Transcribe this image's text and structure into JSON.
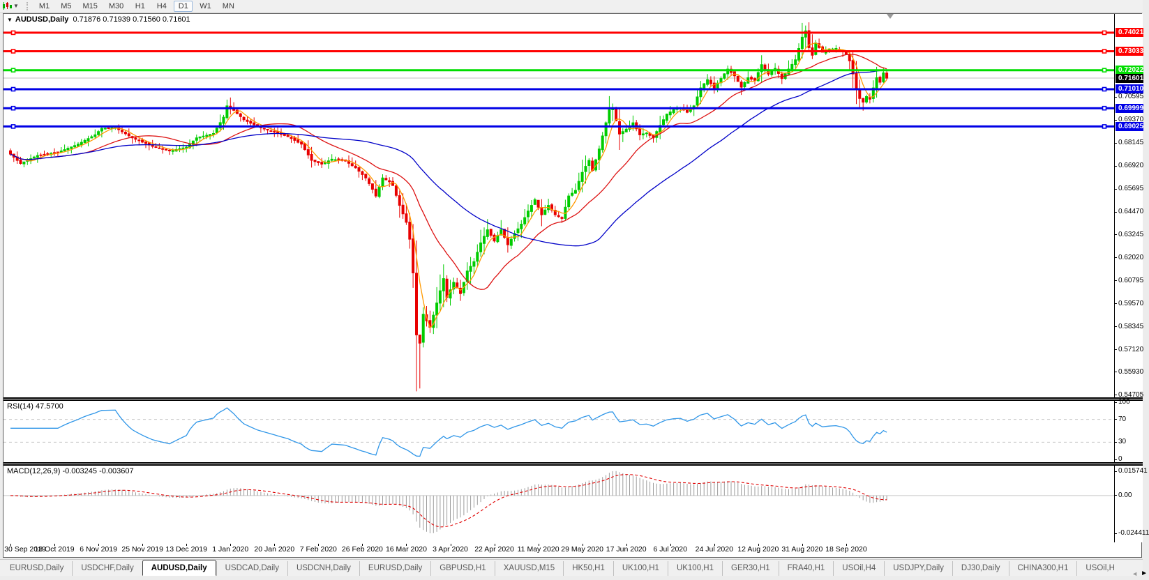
{
  "toolbar": {
    "timeframes": [
      "M1",
      "M5",
      "M15",
      "M30",
      "H1",
      "H4",
      "D1",
      "W1",
      "MN"
    ],
    "active_timeframe": "D1",
    "chart_menu_icon": "charts-toolbar-icon",
    "caret_icon": "chevron-down-icon"
  },
  "title": {
    "expand_icon": "triangle-down-icon",
    "symbol": "AUDUSD,Daily",
    "ohlc": "0.71876 0.71939 0.71560 0.71601"
  },
  "colors": {
    "candle_up": "#00CC00",
    "candle_down": "#E80000",
    "ma_fast": "#FF9900",
    "ma_mid": "#DD1111",
    "ma_slow": "#0000C8",
    "hline_red": "#FF0000",
    "hline_green": "#00DD00",
    "hline_blue": "#0000E6",
    "current_price_line": "#C0C0C0",
    "current_price_badge": "#000000",
    "rsi_line": "#2F96E8",
    "macd_hist": "#9C9C9C",
    "macd_signal": "#E00000"
  },
  "main_axis_ticks": [
    "0.70595",
    "0.69370",
    "0.68145",
    "0.66920",
    "0.65695",
    "0.64470",
    "0.63245",
    "0.62020",
    "0.60795",
    "0.59570",
    "0.58345",
    "0.57120",
    "0.55930",
    "0.54705"
  ],
  "hlines": [
    {
      "label": "0.74021",
      "price": 0.74021,
      "color": "#FF0000"
    },
    {
      "label": "0.73033",
      "price": 0.73033,
      "color": "#FF0000"
    },
    {
      "label": "0.72022",
      "price": 0.72022,
      "color": "#00DD00"
    },
    {
      "label": "0.71010",
      "price": 0.7101,
      "color": "#0000E6"
    },
    {
      "label": "0.69999",
      "price": 0.69999,
      "color": "#0000E6"
    },
    {
      "label": "0.69025",
      "price": 0.69025,
      "color": "#0000E6"
    }
  ],
  "current_price": {
    "label": "0.71601",
    "value": 0.71601
  },
  "rsi": {
    "label": "RSI(14) 47.5700",
    "ticks": [
      {
        "label": "100",
        "value": 100
      },
      {
        "label": "70",
        "value": 70
      },
      {
        "label": "30",
        "value": 30
      },
      {
        "label": "0",
        "value": 0
      }
    ],
    "levels": [
      70,
      30
    ],
    "period": 14
  },
  "macd": {
    "label": "MACD(12,26,9) -0.003245 -0.003607",
    "ticks": [
      {
        "label": "0.015741",
        "value": 0.015741
      },
      {
        "label": "0.00",
        "value": 0
      },
      {
        "label": "-0.024411",
        "value": -0.024411
      }
    ],
    "axis_max": 0.015741,
    "axis_min": -0.024411,
    "fast": 12,
    "slow": 26,
    "signal": 9
  },
  "dates": [
    "30 Sep 2019",
    "18 Oct 2019",
    "6 Nov 2019",
    "25 Nov 2019",
    "13 Dec 2019",
    "1 Jan 2020",
    "20 Jan 2020",
    "7 Feb 2020",
    "26 Feb 2020",
    "16 Mar 2020",
    "3 Apr 2020",
    "22 Apr 2020",
    "11 May 2020",
    "29 May 2020",
    "17 Jun 2020",
    "6 Jul 2020",
    "24 Jul 2020",
    "12 Aug 2020",
    "31 Aug 2020",
    "18 Sep 2020"
  ],
  "tabs": {
    "items": [
      {
        "label": "EURUSD,Daily",
        "active": false
      },
      {
        "label": "USDCHF,Daily",
        "active": false
      },
      {
        "label": "AUDUSD,Daily",
        "active": true
      },
      {
        "label": "USDCAD,Daily",
        "active": false
      },
      {
        "label": "USDCNH,Daily",
        "active": false
      },
      {
        "label": "EURUSD,Daily",
        "active": false
      },
      {
        "label": "GBPUSD,H1",
        "active": false
      },
      {
        "label": "XAUUSD,M15",
        "active": false
      },
      {
        "label": "HK50,H1",
        "active": false
      },
      {
        "label": "UK100,H1",
        "active": false
      },
      {
        "label": "UK100,H1",
        "active": false
      },
      {
        "label": "GER30,H1",
        "active": false
      },
      {
        "label": "FRA40,H1",
        "active": false
      },
      {
        "label": "USOil,H4",
        "active": false
      },
      {
        "label": "USDJPY,Daily",
        "active": false
      },
      {
        "label": "DJ30,Daily",
        "active": false
      },
      {
        "label": "CHINA300,H1",
        "active": false
      },
      {
        "label": "USOil,H",
        "active": false
      }
    ],
    "scroll_left_icon": "tab-scroll-left-icon",
    "scroll_right_icon": "tab-scroll-right-icon"
  },
  "chart_data": {
    "type": "candlestick",
    "symbol": "AUDUSD",
    "timeframe": "Daily",
    "bars": 260,
    "label_every_bars": 13,
    "view_high": 0.7502,
    "view_low": 0.5459,
    "close_keyframes": [
      [
        0,
        0.6755
      ],
      [
        3,
        0.6705
      ],
      [
        8,
        0.6748
      ],
      [
        14,
        0.6765
      ],
      [
        20,
        0.6808
      ],
      [
        25,
        0.6858
      ],
      [
        27,
        0.6892
      ],
      [
        31,
        0.6896
      ],
      [
        36,
        0.6842
      ],
      [
        42,
        0.6796
      ],
      [
        47,
        0.6772
      ],
      [
        52,
        0.6792
      ],
      [
        55,
        0.6842
      ],
      [
        60,
        0.6865
      ],
      [
        63,
        0.6952
      ],
      [
        64,
        0.7012
      ],
      [
        66,
        0.6988
      ],
      [
        69,
        0.6938
      ],
      [
        73,
        0.6902
      ],
      [
        78,
        0.6872
      ],
      [
        82,
        0.6848
      ],
      [
        86,
        0.6808
      ],
      [
        89,
        0.6722
      ],
      [
        92,
        0.6702
      ],
      [
        95,
        0.6728
      ],
      [
        99,
        0.6718
      ],
      [
        102,
        0.6682
      ],
      [
        105,
        0.6628
      ],
      [
        107,
        0.6568
      ],
      [
        108,
        0.6532
      ],
      [
        110,
        0.6628
      ],
      [
        112,
        0.6608
      ],
      [
        113,
        0.6588
      ],
      [
        115,
        0.6482
      ],
      [
        117,
        0.6392
      ],
      [
        118,
        0.6302
      ],
      [
        119,
        0.6122
      ],
      [
        120,
        0.5792
      ],
      [
        121,
        0.5748
      ],
      [
        122,
        0.5902
      ],
      [
        124,
        0.5832
      ],
      [
        126,
        0.5962
      ],
      [
        128,
        0.6092
      ],
      [
        129,
        0.5992
      ],
      [
        131,
        0.6072
      ],
      [
        133,
        0.6012
      ],
      [
        135,
        0.6132
      ],
      [
        137,
        0.6182
      ],
      [
        139,
        0.6282
      ],
      [
        141,
        0.6352
      ],
      [
        143,
        0.6292
      ],
      [
        145,
        0.6352
      ],
      [
        147,
        0.6272
      ],
      [
        149,
        0.6332
      ],
      [
        151,
        0.6382
      ],
      [
        153,
        0.6452
      ],
      [
        155,
        0.6512
      ],
      [
        157,
        0.6432
      ],
      [
        159,
        0.6482
      ],
      [
        161,
        0.6432
      ],
      [
        163,
        0.6412
      ],
      [
        165,
        0.6532
      ],
      [
        167,
        0.6562
      ],
      [
        169,
        0.6658
      ],
      [
        171,
        0.6722
      ],
      [
        172,
        0.6668
      ],
      [
        174,
        0.6782
      ],
      [
        176,
        0.6922
      ],
      [
        177,
        0.6992
      ],
      [
        178,
        0.7002
      ],
      [
        180,
        0.6862
      ],
      [
        182,
        0.6888
      ],
      [
        184,
        0.6922
      ],
      [
        186,
        0.6858
      ],
      [
        188,
        0.6868
      ],
      [
        190,
        0.6842
      ],
      [
        192,
        0.6908
      ],
      [
        194,
        0.6968
      ],
      [
        196,
        0.6992
      ],
      [
        198,
        0.7002
      ],
      [
        200,
        0.6978
      ],
      [
        202,
        0.7012
      ],
      [
        204,
        0.7108
      ],
      [
        206,
        0.7152
      ],
      [
        208,
        0.7108
      ],
      [
        210,
        0.7158
      ],
      [
        212,
        0.7208
      ],
      [
        214,
        0.7172
      ],
      [
        216,
        0.7112
      ],
      [
        218,
        0.7162
      ],
      [
        220,
        0.7148
      ],
      [
        222,
        0.7232
      ],
      [
        224,
        0.7182
      ],
      [
        226,
        0.7212
      ],
      [
        228,
        0.7158
      ],
      [
        230,
        0.7208
      ],
      [
        232,
        0.7258
      ],
      [
        234,
        0.7378
      ],
      [
        235,
        0.7412
      ],
      [
        236,
        0.7322
      ],
      [
        237,
        0.7282
      ],
      [
        238,
        0.7348
      ],
      [
        240,
        0.7298
      ],
      [
        242,
        0.7312
      ],
      [
        244,
        0.7318
      ],
      [
        246,
        0.7302
      ],
      [
        247,
        0.7288
      ],
      [
        248,
        0.7252
      ],
      [
        249,
        0.7182
      ],
      [
        250,
        0.7102
      ],
      [
        251,
        0.7052
      ],
      [
        252,
        0.7032
      ],
      [
        253,
        0.7062
      ],
      [
        254,
        0.7048
      ],
      [
        255,
        0.7108
      ],
      [
        256,
        0.7162
      ],
      [
        257,
        0.7138
      ],
      [
        258,
        0.7188
      ],
      [
        259,
        0.716
      ]
    ],
    "wick_lows": {
      "121": 0.5506
    },
    "moving_averages": [
      {
        "name": "fast",
        "period": 5,
        "color": "#FF9900"
      },
      {
        "name": "mid",
        "period": 22,
        "color": "#DD1111"
      },
      {
        "name": "slow",
        "period": 55,
        "color": "#0000C8"
      }
    ]
  }
}
